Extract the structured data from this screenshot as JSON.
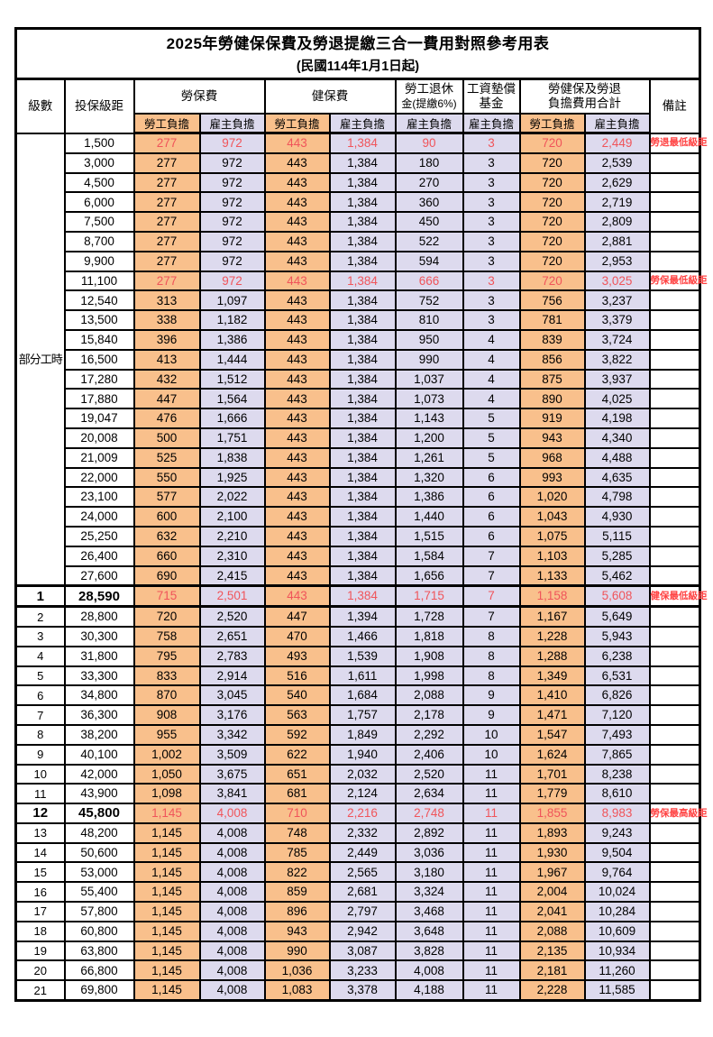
{
  "title": "2025年勞健保保費及勞退提繳三合一費用對照參考用表",
  "subtitle": "(民國114年1月1日起)",
  "colors": {
    "worker_column_bg": "#F9C08C",
    "employer_column_bg": "#DDDAEE",
    "highlight_value_red": "#F0545A",
    "note_red": "#FF4242",
    "border": "#000000"
  },
  "header": {
    "col_level": "級數",
    "col_salary": "投保級距",
    "grp_labor": "勞保費",
    "grp_health": "健保費",
    "grp_pension_l1": "勞工退休",
    "grp_pension_l2": "金(提繳6%)",
    "grp_fund_l1": "工資墊償",
    "grp_fund_l2": "基金",
    "grp_total_l1": "勞健保及勞退",
    "grp_total_l2": "負擔費用合計",
    "col_note": "備註",
    "sub_worker": "勞工負擔",
    "sub_employer": "雇主負擔"
  },
  "group": {
    "label": "部分工時",
    "rowspan": 23
  },
  "rows": [
    {
      "lvl": "",
      "salary": "1,500",
      "v": [
        "277",
        "972",
        "443",
        "1,384",
        "90",
        "3",
        "720",
        "2,449"
      ],
      "note": "勞退最低級距",
      "red": true,
      "big": false
    },
    {
      "lvl": "",
      "salary": "3,000",
      "v": [
        "277",
        "972",
        "443",
        "1,384",
        "180",
        "3",
        "720",
        "2,539"
      ],
      "note": "",
      "red": false,
      "big": false
    },
    {
      "lvl": "",
      "salary": "4,500",
      "v": [
        "277",
        "972",
        "443",
        "1,384",
        "270",
        "3",
        "720",
        "2,629"
      ],
      "note": "",
      "red": false,
      "big": false
    },
    {
      "lvl": "",
      "salary": "6,000",
      "v": [
        "277",
        "972",
        "443",
        "1,384",
        "360",
        "3",
        "720",
        "2,719"
      ],
      "note": "",
      "red": false,
      "big": false
    },
    {
      "lvl": "",
      "salary": "7,500",
      "v": [
        "277",
        "972",
        "443",
        "1,384",
        "450",
        "3",
        "720",
        "2,809"
      ],
      "note": "",
      "red": false,
      "big": false
    },
    {
      "lvl": "",
      "salary": "8,700",
      "v": [
        "277",
        "972",
        "443",
        "1,384",
        "522",
        "3",
        "720",
        "2,881"
      ],
      "note": "",
      "red": false,
      "big": false
    },
    {
      "lvl": "",
      "salary": "9,900",
      "v": [
        "277",
        "972",
        "443",
        "1,384",
        "594",
        "3",
        "720",
        "2,953"
      ],
      "note": "",
      "red": false,
      "big": false
    },
    {
      "lvl": "",
      "salary": "11,100",
      "v": [
        "277",
        "972",
        "443",
        "1,384",
        "666",
        "3",
        "720",
        "3,025"
      ],
      "note": "勞保最低級距",
      "red": true,
      "big": false
    },
    {
      "lvl": "",
      "salary": "12,540",
      "v": [
        "313",
        "1,097",
        "443",
        "1,384",
        "752",
        "3",
        "756",
        "3,237"
      ],
      "note": "",
      "red": false,
      "big": false
    },
    {
      "lvl": "",
      "salary": "13,500",
      "v": [
        "338",
        "1,182",
        "443",
        "1,384",
        "810",
        "3",
        "781",
        "3,379"
      ],
      "note": "",
      "red": false,
      "big": false
    },
    {
      "lvl": "",
      "salary": "15,840",
      "v": [
        "396",
        "1,386",
        "443",
        "1,384",
        "950",
        "4",
        "839",
        "3,724"
      ],
      "note": "",
      "red": false,
      "big": false
    },
    {
      "lvl": "",
      "salary": "16,500",
      "v": [
        "413",
        "1,444",
        "443",
        "1,384",
        "990",
        "4",
        "856",
        "3,822"
      ],
      "note": "",
      "red": false,
      "big": false
    },
    {
      "lvl": "",
      "salary": "17,280",
      "v": [
        "432",
        "1,512",
        "443",
        "1,384",
        "1,037",
        "4",
        "875",
        "3,937"
      ],
      "note": "",
      "red": false,
      "big": false
    },
    {
      "lvl": "",
      "salary": "17,880",
      "v": [
        "447",
        "1,564",
        "443",
        "1,384",
        "1,073",
        "4",
        "890",
        "4,025"
      ],
      "note": "",
      "red": false,
      "big": false
    },
    {
      "lvl": "",
      "salary": "19,047",
      "v": [
        "476",
        "1,666",
        "443",
        "1,384",
        "1,143",
        "5",
        "919",
        "4,198"
      ],
      "note": "",
      "red": false,
      "big": false
    },
    {
      "lvl": "",
      "salary": "20,008",
      "v": [
        "500",
        "1,751",
        "443",
        "1,384",
        "1,200",
        "5",
        "943",
        "4,340"
      ],
      "note": "",
      "red": false,
      "big": false
    },
    {
      "lvl": "",
      "salary": "21,009",
      "v": [
        "525",
        "1,838",
        "443",
        "1,384",
        "1,261",
        "5",
        "968",
        "4,488"
      ],
      "note": "",
      "red": false,
      "big": false
    },
    {
      "lvl": "",
      "salary": "22,000",
      "v": [
        "550",
        "1,925",
        "443",
        "1,384",
        "1,320",
        "6",
        "993",
        "4,635"
      ],
      "note": "",
      "red": false,
      "big": false
    },
    {
      "lvl": "",
      "salary": "23,100",
      "v": [
        "577",
        "2,022",
        "443",
        "1,384",
        "1,386",
        "6",
        "1,020",
        "4,798"
      ],
      "note": "",
      "red": false,
      "big": false
    },
    {
      "lvl": "",
      "salary": "24,000",
      "v": [
        "600",
        "2,100",
        "443",
        "1,384",
        "1,440",
        "6",
        "1,043",
        "4,930"
      ],
      "note": "",
      "red": false,
      "big": false
    },
    {
      "lvl": "",
      "salary": "25,250",
      "v": [
        "632",
        "2,210",
        "443",
        "1,384",
        "1,515",
        "6",
        "1,075",
        "5,115"
      ],
      "note": "",
      "red": false,
      "big": false
    },
    {
      "lvl": "",
      "salary": "26,400",
      "v": [
        "660",
        "2,310",
        "443",
        "1,384",
        "1,584",
        "7",
        "1,103",
        "5,285"
      ],
      "note": "",
      "red": false,
      "big": false
    },
    {
      "lvl": "",
      "salary": "27,600",
      "v": [
        "690",
        "2,415",
        "443",
        "1,384",
        "1,656",
        "7",
        "1,133",
        "5,462"
      ],
      "note": "",
      "red": false,
      "big": false
    },
    {
      "lvl": "1",
      "salary": "28,590",
      "v": [
        "715",
        "2,501",
        "443",
        "1,384",
        "1,715",
        "7",
        "1,158",
        "5,608"
      ],
      "note": "健保最低級距",
      "red": true,
      "big": true
    },
    {
      "lvl": "2",
      "salary": "28,800",
      "v": [
        "720",
        "2,520",
        "447",
        "1,394",
        "1,728",
        "7",
        "1,167",
        "5,649"
      ],
      "note": "",
      "red": false,
      "big": false
    },
    {
      "lvl": "3",
      "salary": "30,300",
      "v": [
        "758",
        "2,651",
        "470",
        "1,466",
        "1,818",
        "8",
        "1,228",
        "5,943"
      ],
      "note": "",
      "red": false,
      "big": false
    },
    {
      "lvl": "4",
      "salary": "31,800",
      "v": [
        "795",
        "2,783",
        "493",
        "1,539",
        "1,908",
        "8",
        "1,288",
        "6,238"
      ],
      "note": "",
      "red": false,
      "big": false
    },
    {
      "lvl": "5",
      "salary": "33,300",
      "v": [
        "833",
        "2,914",
        "516",
        "1,611",
        "1,998",
        "8",
        "1,349",
        "6,531"
      ],
      "note": "",
      "red": false,
      "big": false
    },
    {
      "lvl": "6",
      "salary": "34,800",
      "v": [
        "870",
        "3,045",
        "540",
        "1,684",
        "2,088",
        "9",
        "1,410",
        "6,826"
      ],
      "note": "",
      "red": false,
      "big": false
    },
    {
      "lvl": "7",
      "salary": "36,300",
      "v": [
        "908",
        "3,176",
        "563",
        "1,757",
        "2,178",
        "9",
        "1,471",
        "7,120"
      ],
      "note": "",
      "red": false,
      "big": false
    },
    {
      "lvl": "8",
      "salary": "38,200",
      "v": [
        "955",
        "3,342",
        "592",
        "1,849",
        "2,292",
        "10",
        "1,547",
        "7,493"
      ],
      "note": "",
      "red": false,
      "big": false
    },
    {
      "lvl": "9",
      "salary": "40,100",
      "v": [
        "1,002",
        "3,509",
        "622",
        "1,940",
        "2,406",
        "10",
        "1,624",
        "7,865"
      ],
      "note": "",
      "red": false,
      "big": false
    },
    {
      "lvl": "10",
      "salary": "42,000",
      "v": [
        "1,050",
        "3,675",
        "651",
        "2,032",
        "2,520",
        "11",
        "1,701",
        "8,238"
      ],
      "note": "",
      "red": false,
      "big": false
    },
    {
      "lvl": "11",
      "salary": "43,900",
      "v": [
        "1,098",
        "3,841",
        "681",
        "2,124",
        "2,634",
        "11",
        "1,779",
        "8,610"
      ],
      "note": "",
      "red": false,
      "big": false
    },
    {
      "lvl": "12",
      "salary": "45,800",
      "v": [
        "1,145",
        "4,008",
        "710",
        "2,216",
        "2,748",
        "11",
        "1,855",
        "8,983"
      ],
      "note": "勞保最高級距",
      "red": true,
      "big": true
    },
    {
      "lvl": "13",
      "salary": "48,200",
      "v": [
        "1,145",
        "4,008",
        "748",
        "2,332",
        "2,892",
        "11",
        "1,893",
        "9,243"
      ],
      "note": "",
      "red": false,
      "big": false
    },
    {
      "lvl": "14",
      "salary": "50,600",
      "v": [
        "1,145",
        "4,008",
        "785",
        "2,449",
        "3,036",
        "11",
        "1,930",
        "9,504"
      ],
      "note": "",
      "red": false,
      "big": false
    },
    {
      "lvl": "15",
      "salary": "53,000",
      "v": [
        "1,145",
        "4,008",
        "822",
        "2,565",
        "3,180",
        "11",
        "1,967",
        "9,764"
      ],
      "note": "",
      "red": false,
      "big": false
    },
    {
      "lvl": "16",
      "salary": "55,400",
      "v": [
        "1,145",
        "4,008",
        "859",
        "2,681",
        "3,324",
        "11",
        "2,004",
        "10,024"
      ],
      "note": "",
      "red": false,
      "big": false
    },
    {
      "lvl": "17",
      "salary": "57,800",
      "v": [
        "1,145",
        "4,008",
        "896",
        "2,797",
        "3,468",
        "11",
        "2,041",
        "10,284"
      ],
      "note": "",
      "red": false,
      "big": false
    },
    {
      "lvl": "18",
      "salary": "60,800",
      "v": [
        "1,145",
        "4,008",
        "943",
        "2,942",
        "3,648",
        "11",
        "2,088",
        "10,609"
      ],
      "note": "",
      "red": false,
      "big": false
    },
    {
      "lvl": "19",
      "salary": "63,800",
      "v": [
        "1,145",
        "4,008",
        "990",
        "3,087",
        "3,828",
        "11",
        "2,135",
        "10,934"
      ],
      "note": "",
      "red": false,
      "big": false
    },
    {
      "lvl": "20",
      "salary": "66,800",
      "v": [
        "1,145",
        "4,008",
        "1,036",
        "3,233",
        "4,008",
        "11",
        "2,181",
        "11,260"
      ],
      "note": "",
      "red": false,
      "big": false
    },
    {
      "lvl": "21",
      "salary": "69,800",
      "v": [
        "1,145",
        "4,008",
        "1,083",
        "3,378",
        "4,188",
        "11",
        "2,228",
        "11,585"
      ],
      "note": "",
      "red": false,
      "big": false
    }
  ]
}
